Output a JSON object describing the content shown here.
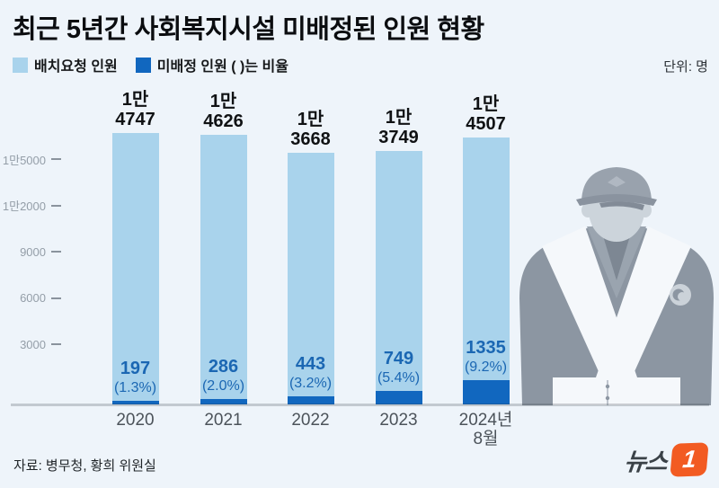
{
  "header": {
    "title": "최근 5년간 사회복지시설 미배정된 인원 현황",
    "unit_label": "단위: 명"
  },
  "legend": [
    {
      "label": "배치요청 인원",
      "color": "#a9d3ec"
    },
    {
      "label": "미배정 인원 (  )는 비율",
      "color": "#1167bf"
    }
  ],
  "chart_data": {
    "type": "bar",
    "stacked": true,
    "unit": "명",
    "title": "최근 5년간 사회복지시설 미배정된 인원 현황",
    "categories": [
      "2020",
      "2021",
      "2022",
      "2023",
      "2024년 8월"
    ],
    "category_lines": [
      [
        "2020"
      ],
      [
        "2021"
      ],
      [
        "2022"
      ],
      [
        "2023"
      ],
      [
        "2024년",
        "8월"
      ]
    ],
    "series": [
      {
        "name": "배치요청 인원",
        "color": "#a9d3ec",
        "values": [
          14747,
          14626,
          13668,
          13749,
          14507
        ],
        "value_label_lines": [
          [
            "1만",
            "4747"
          ],
          [
            "1만",
            "4626"
          ],
          [
            "1만",
            "3668"
          ],
          [
            "1만",
            "3749"
          ],
          [
            "1만",
            "4507"
          ]
        ]
      },
      {
        "name": "미배정 인원",
        "color": "#1167bf",
        "values": [
          197,
          286,
          443,
          749,
          1335
        ],
        "percent_labels": [
          "(1.3%)",
          "(2.0%)",
          "(3.2%)",
          "(5.4%)",
          "(9.2%)"
        ]
      }
    ],
    "value_text_color": "#1b67b3",
    "yticks": {
      "labels": [
        "1만5000",
        "1만2000",
        "9000",
        "6000",
        "3000"
      ],
      "values": [
        15000,
        12000,
        9000,
        6000,
        3000
      ]
    },
    "ylim": [
      0,
      15500
    ],
    "grid": false,
    "legend_position": "top-left"
  },
  "footer": {
    "source": "자료: 병무청, 황희 위원실",
    "logo_text": "뉴스",
    "logo_number": "1",
    "logo_color": "#f25b22"
  },
  "illustration": {
    "name": "social-service-agent-silhouette"
  }
}
